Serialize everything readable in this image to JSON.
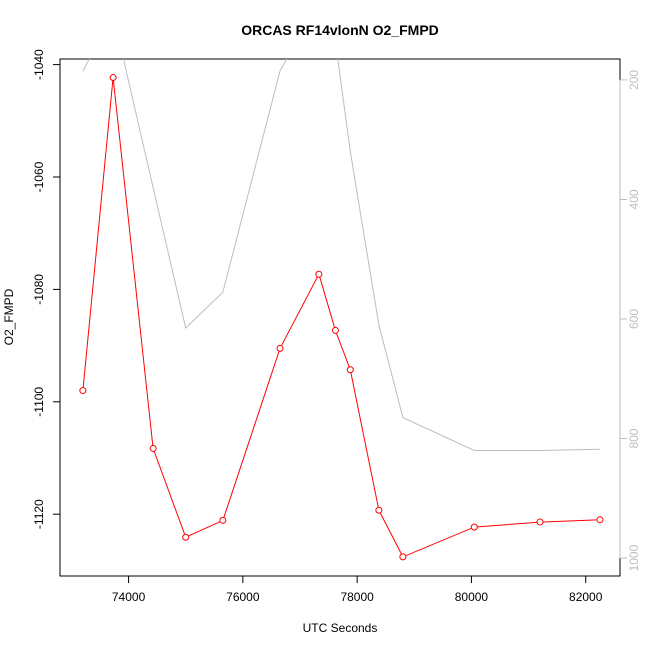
{
  "chart_data": {
    "type": "line",
    "title": "ORCAS RF14vlonN O2_FMPD",
    "xlabel": "UTC Seconds",
    "ylabel": "O2_FMPD",
    "xlim": [
      72800,
      82600
    ],
    "ylim": [
      -1131,
      -1039
    ],
    "y2lim": [
      165,
      1030
    ],
    "y2_reversed": true,
    "grid": false,
    "xticks": [
      74000,
      76000,
      78000,
      80000,
      82000
    ],
    "yticks": [
      -1120,
      -1100,
      -1080,
      -1060,
      -1040
    ],
    "y2ticks": [
      1000,
      800,
      600,
      400,
      200
    ],
    "colors": {
      "primary": "#ff0000",
      "secondary": "#bebebe",
      "axis": "#000000"
    },
    "series": [
      {
        "axis": "left",
        "marker": "open-circle",
        "x": [
          73200,
          73730,
          74430,
          75000,
          75650,
          76650,
          77330,
          77620,
          77880,
          78380,
          78800,
          80050,
          81200,
          82250
        ],
        "y": [
          -1098,
          -1042.3,
          -1108.3,
          -1124.1,
          -1121.1,
          -1090.5,
          -1077.3,
          -1087.3,
          -1094.3,
          -1119.3,
          -1127.6,
          -1122.3,
          -1121.4,
          -1121.0
        ]
      },
      {
        "axis": "right",
        "x": [
          73200,
          73730,
          74430,
          75000,
          75650,
          76650,
          77330,
          77620,
          77880,
          78380,
          78800,
          80050,
          81200,
          82250
        ],
        "y": [
          185,
          90,
          380,
          615,
          555,
          185,
          70,
          135,
          320,
          610,
          765,
          820,
          820,
          818
        ]
      }
    ]
  }
}
